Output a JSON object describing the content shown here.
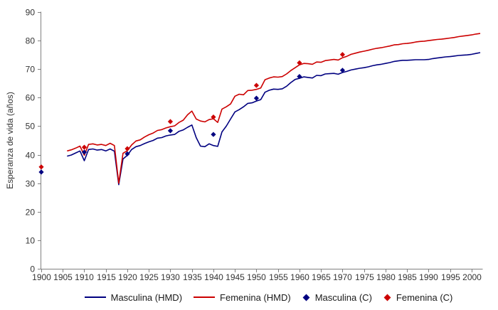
{
  "chart_data": {
    "type": "line",
    "title": "",
    "xlabel": "",
    "ylabel": "Esperanza de vida (años)",
    "xlim": [
      1900,
      2002.5
    ],
    "ylim": [
      0,
      90
    ],
    "x_ticks": [
      1900,
      1905,
      1910,
      1915,
      1920,
      1925,
      1930,
      1935,
      1940,
      1945,
      1950,
      1955,
      1960,
      1965,
      1970,
      1975,
      1980,
      1985,
      1990,
      1995,
      2000
    ],
    "y_ticks": [
      0,
      10,
      20,
      30,
      40,
      50,
      60,
      70,
      80,
      90
    ],
    "grid": false,
    "legend_position": "bottom",
    "axis_color": "#808080",
    "tick_label_color": "#333333",
    "years_hmd": [
      1906,
      1907,
      1908,
      1909,
      1910,
      1911,
      1912,
      1913,
      1914,
      1915,
      1916,
      1917,
      1918,
      1919,
      1920,
      1921,
      1922,
      1923,
      1924,
      1925,
      1926,
      1927,
      1928,
      1929,
      1930,
      1931,
      1932,
      1933,
      1934,
      1935,
      1936,
      1937,
      1938,
      1939,
      1940,
      1941,
      1942,
      1943,
      1944,
      1945,
      1946,
      1947,
      1948,
      1949,
      1950,
      1951,
      1952,
      1953,
      1954,
      1955,
      1956,
      1957,
      1958,
      1959,
      1960,
      1961,
      1962,
      1963,
      1964,
      1965,
      1966,
      1967,
      1968,
      1969,
      1970,
      1971,
      1972,
      1973,
      1974,
      1975,
      1976,
      1977,
      1978,
      1979,
      1980,
      1981,
      1982,
      1983,
      1984,
      1985,
      1986,
      1987,
      1988,
      1989,
      1990,
      1991,
      1992,
      1993,
      1994,
      1995,
      1996,
      1997,
      1998,
      1999,
      2000,
      2001,
      2002
    ],
    "series": [
      {
        "name": "Masculina (HMD)",
        "type": "line",
        "color": "#000080",
        "values": [
          39.5,
          39.9,
          40.6,
          41.3,
          37.9,
          41.8,
          42.0,
          41.6,
          41.8,
          41.3,
          42.0,
          41.2,
          29.5,
          38.5,
          39.8,
          41.8,
          42.8,
          43.2,
          43.9,
          44.5,
          45.0,
          45.8,
          46.0,
          46.6,
          46.9,
          47.1,
          48.2,
          48.7,
          49.6,
          50.4,
          46.0,
          43.0,
          42.8,
          43.8,
          43.2,
          42.9,
          48.0,
          50.0,
          52.5,
          55.0,
          55.8,
          56.8,
          58.0,
          58.2,
          58.8,
          59.3,
          61.9,
          62.6,
          63.0,
          62.9,
          63.1,
          64.0,
          65.3,
          66.4,
          66.8,
          67.3,
          67.1,
          66.9,
          67.8,
          67.7,
          68.3,
          68.4,
          68.5,
          68.2,
          68.8,
          69.2,
          69.7,
          70.0,
          70.3,
          70.5,
          70.8,
          71.2,
          71.5,
          71.7,
          72.0,
          72.3,
          72.7,
          72.9,
          73.1,
          73.1,
          73.2,
          73.3,
          73.3,
          73.3,
          73.4,
          73.7,
          73.9,
          74.1,
          74.3,
          74.4,
          74.6,
          74.8,
          74.9,
          75.0,
          75.2,
          75.5,
          75.8
        ]
      },
      {
        "name": "Femenina (HMD)",
        "type": "line",
        "color": "#cc0000",
        "values": [
          41.3,
          41.7,
          42.3,
          43.0,
          39.8,
          43.6,
          43.8,
          43.4,
          43.6,
          43.2,
          44.0,
          43.2,
          30.0,
          40.5,
          41.4,
          43.4,
          44.8,
          45.2,
          46.2,
          47.0,
          47.6,
          48.5,
          48.8,
          49.4,
          49.8,
          50.1,
          51.3,
          52.1,
          54.0,
          55.3,
          52.5,
          51.8,
          51.5,
          52.3,
          52.6,
          51.3,
          56.0,
          56.8,
          57.8,
          60.5,
          61.2,
          61.0,
          62.5,
          62.6,
          62.9,
          63.4,
          66.3,
          66.9,
          67.3,
          67.2,
          67.4,
          68.3,
          69.5,
          70.5,
          71.5,
          72.0,
          71.9,
          71.7,
          72.5,
          72.4,
          73.0,
          73.2,
          73.4,
          73.2,
          74.0,
          74.5,
          75.2,
          75.6,
          76.0,
          76.3,
          76.6,
          77.0,
          77.3,
          77.5,
          77.8,
          78.1,
          78.5,
          78.6,
          78.9,
          79.0,
          79.2,
          79.5,
          79.7,
          79.8,
          80.0,
          80.2,
          80.4,
          80.5,
          80.7,
          80.9,
          81.1,
          81.4,
          81.6,
          81.8,
          82.0,
          82.3,
          82.5
        ]
      },
      {
        "name": "Masculina (C)",
        "type": "scatter",
        "marker": "diamond",
        "color": "#000080",
        "x": [
          1900,
          1910,
          1920,
          1930,
          1940,
          1950,
          1960,
          1970
        ],
        "y": [
          33.9,
          40.9,
          40.3,
          48.4,
          47.1,
          59.8,
          67.4,
          69.6
        ]
      },
      {
        "name": "Femenina (C)",
        "type": "scatter",
        "marker": "diamond",
        "color": "#cc0000",
        "x": [
          1900,
          1910,
          1920,
          1930,
          1940,
          1950,
          1960,
          1970
        ],
        "y": [
          35.7,
          42.6,
          42.1,
          51.6,
          53.2,
          64.3,
          72.2,
          75.1
        ]
      }
    ]
  }
}
